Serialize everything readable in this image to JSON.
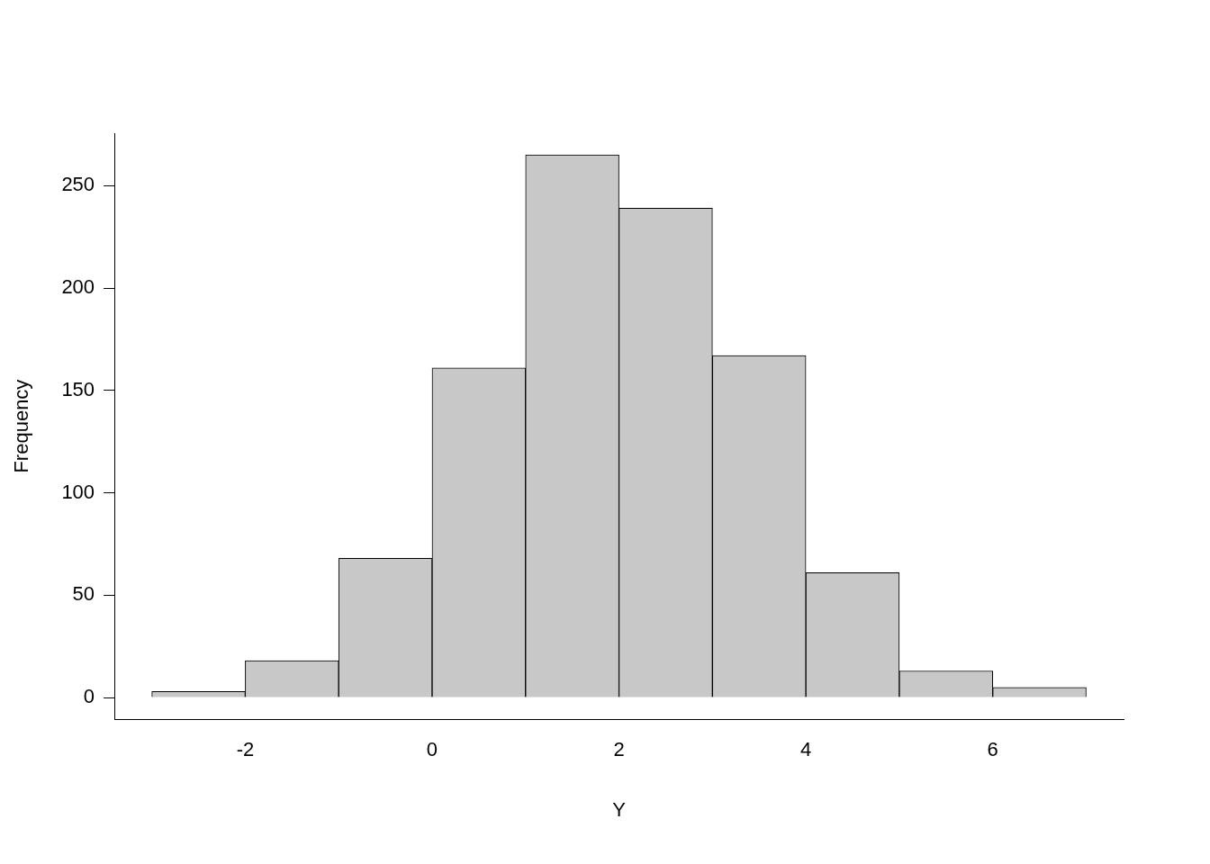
{
  "chart_data": {
    "type": "histogram",
    "xlabel": "Y",
    "ylabel": "Frequency",
    "bins": [
      -3,
      -2,
      -1,
      0,
      1,
      2,
      3,
      4,
      5,
      6,
      7
    ],
    "values": [
      3,
      18,
      68,
      161,
      265,
      239,
      167,
      61,
      13,
      5
    ],
    "color": "#c8c8c8",
    "xlim": [
      -3.4,
      7.4
    ],
    "xticks": [
      -2,
      0,
      2,
      4,
      6
    ],
    "ylim": [
      -10.6,
      275.6
    ],
    "yticks": [
      0,
      50,
      100,
      150,
      200,
      250
    ],
    "grid": false
  }
}
